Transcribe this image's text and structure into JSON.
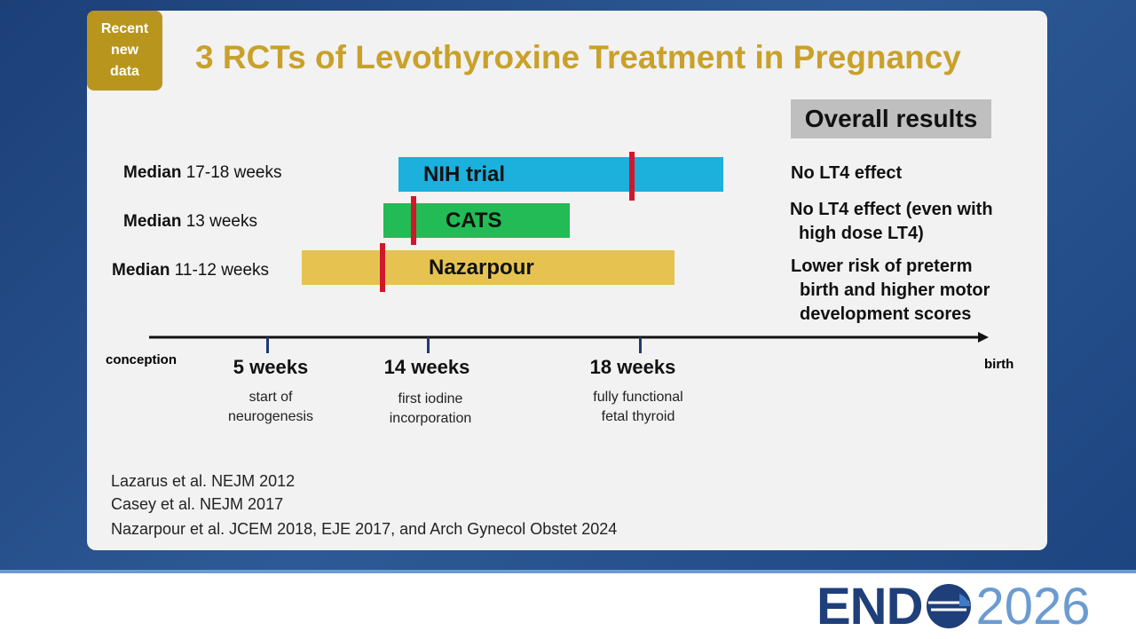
{
  "badge": [
    "Recent",
    "new",
    "data"
  ],
  "title": "3 RCTs of Levothyroxine Treatment in Pregnancy",
  "results_header": "Overall results",
  "trials": [
    {
      "label_bold": "Median",
      "label_rest": "17-18 weeks",
      "name": "NIH trial",
      "result": [
        "No LT4 effect"
      ]
    },
    {
      "label_bold": "Median",
      "label_rest": "13 weeks",
      "name": "CATS",
      "result": [
        "No LT4 effect (even with",
        "high dose LT4)"
      ]
    },
    {
      "label_bold": "Median",
      "label_rest": "11-12 weeks",
      "name": "Nazarpour",
      "result": [
        "Lower risk of preterm",
        "birth and higher motor",
        "development scores"
      ]
    }
  ],
  "timeline": {
    "start": "conception",
    "end": "birth",
    "milestones": [
      {
        "label": "5 weeks",
        "note": [
          "start of",
          "neurogenesis"
        ]
      },
      {
        "label": "14 weeks",
        "note": [
          "first iodine",
          "incorporation"
        ]
      },
      {
        "label": "18 weeks",
        "note": [
          "fully functional",
          "fetal thyroid"
        ]
      }
    ]
  },
  "references": [
    "Lazarus et al. NEJM 2012",
    "Casey et al. NEJM 2017",
    "Nazarpour et al. JCEM 2018, EJE 2017, and Arch Gynecol Obstet 2024"
  ],
  "logo": {
    "left": "END",
    "right": "2026"
  }
}
